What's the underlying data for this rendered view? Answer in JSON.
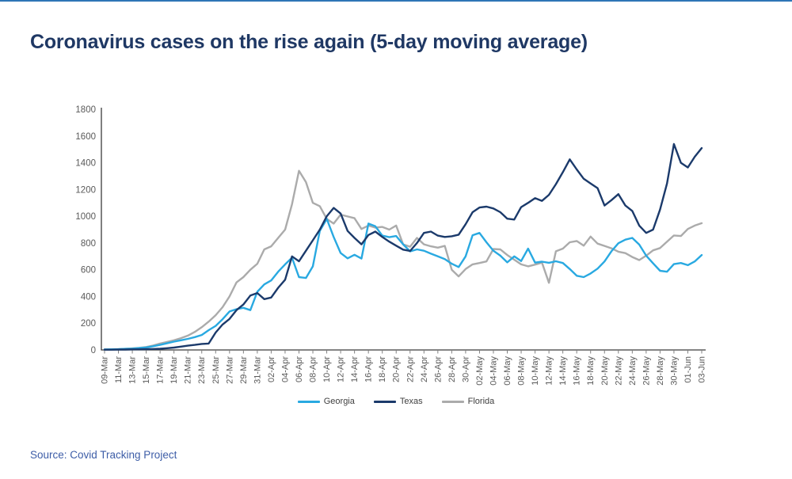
{
  "page": {
    "title": "Coronavirus cases on the rise again (5-day moving average)",
    "source": "Source: Covid Tracking Project"
  },
  "colors": {
    "title": "#1F3864",
    "top_rule": "#2E75B6",
    "axis_line": "#3b3b3b",
    "tick": "#7f7f7f",
    "axis_label": "#595959",
    "source": "#3D5DA7",
    "georgia": "#29A9E1",
    "texas": "#1B3A6B",
    "florida": "#ABABAB"
  },
  "chart_data": {
    "type": "line",
    "title": "Coronavirus cases on the rise again (5-day moving average)",
    "xlabel": "",
    "ylabel": "",
    "ylim": [
      0,
      1800
    ],
    "y_ticks": [
      0,
      200,
      400,
      600,
      800,
      1000,
      1200,
      1400,
      1600,
      1800
    ],
    "grid": false,
    "legend_position": "bottom-center",
    "x_tick_labels": [
      "09-Mar",
      "11-Mar",
      "13-Mar",
      "15-Mar",
      "17-Mar",
      "19-Mar",
      "21-Mar",
      "23-Mar",
      "25-Mar",
      "27-Mar",
      "29-Mar",
      "31-Mar",
      "02-Apr",
      "04-Apr",
      "06-Apr",
      "08-Apr",
      "10-Apr",
      "12-Apr",
      "14-Apr",
      "16-Apr",
      "18-Apr",
      "20-Apr",
      "22-Apr",
      "24-Apr",
      "26-Apr",
      "28-Apr",
      "30-Apr",
      "02-May",
      "04-May",
      "06-May",
      "08-May",
      "10-May",
      "12-May",
      "14-May",
      "16-May",
      "18-May",
      "20-May",
      "22-May",
      "24-May",
      "26-May",
      "28-May",
      "30-May",
      "01-Jun",
      "03-Jun"
    ],
    "x_tick_every_days": 2,
    "x_days_span": 86,
    "series": [
      {
        "name": "Georgia",
        "color": "#29A9E1",
        "values": [
          4,
          5,
          6,
          8,
          10,
          14,
          19,
          28,
          38,
          50,
          62,
          72,
          83,
          96,
          112,
          148,
          180,
          230,
          288,
          305,
          315,
          298,
          435,
          490,
          520,
          585,
          640,
          690,
          545,
          538,
          625,
          890,
          980,
          845,
          725,
          685,
          712,
          683,
          945,
          925,
          855,
          843,
          852,
          790,
          737,
          752,
          742,
          720,
          700,
          680,
          645,
          620,
          700,
          858,
          875,
          805,
          742,
          705,
          655,
          700,
          665,
          758,
          653,
          660,
          652,
          663,
          650,
          605,
          555,
          545,
          572,
          608,
          662,
          738,
          798,
          825,
          838,
          788,
          705,
          648,
          592,
          585,
          642,
          650,
          634,
          662,
          710
        ]
      },
      {
        "name": "Texas",
        "color": "#1B3A6B",
        "values": [
          2,
          2,
          3,
          3,
          4,
          5,
          6,
          7,
          9,
          13,
          18,
          25,
          32,
          38,
          45,
          48,
          130,
          190,
          232,
          298,
          340,
          407,
          426,
          380,
          392,
          465,
          525,
          700,
          663,
          742,
          820,
          900,
          1000,
          1062,
          1020,
          890,
          838,
          790,
          860,
          885,
          845,
          810,
          780,
          750,
          740,
          800,
          875,
          885,
          855,
          845,
          850,
          862,
          940,
          1030,
          1065,
          1072,
          1058,
          1030,
          982,
          975,
          1068,
          1100,
          1135,
          1115,
          1160,
          1240,
          1330,
          1425,
          1350,
          1280,
          1245,
          1210,
          1080,
          1120,
          1165,
          1080,
          1040,
          930,
          875,
          900,
          1050,
          1245,
          1540,
          1400,
          1365,
          1445,
          1510
        ]
      },
      {
        "name": "Florida",
        "color": "#ABABAB",
        "values": [
          3,
          4,
          5,
          8,
          12,
          16,
          22,
          33,
          48,
          60,
          72,
          88,
          107,
          135,
          170,
          212,
          260,
          320,
          400,
          505,
          545,
          600,
          645,
          752,
          775,
          838,
          900,
          1090,
          1340,
          1255,
          1100,
          1075,
          980,
          945,
          1012,
          998,
          985,
          905,
          930,
          915,
          920,
          900,
          930,
          790,
          772,
          838,
          790,
          775,
          765,
          778,
          600,
          550,
          605,
          640,
          650,
          662,
          755,
          752,
          710,
          675,
          640,
          625,
          638,
          653,
          502,
          738,
          758,
          805,
          815,
          780,
          848,
          795,
          778,
          760,
          735,
          724,
          695,
          672,
          705,
          745,
          762,
          810,
          856,
          852,
          905,
          930,
          948
        ]
      }
    ]
  }
}
